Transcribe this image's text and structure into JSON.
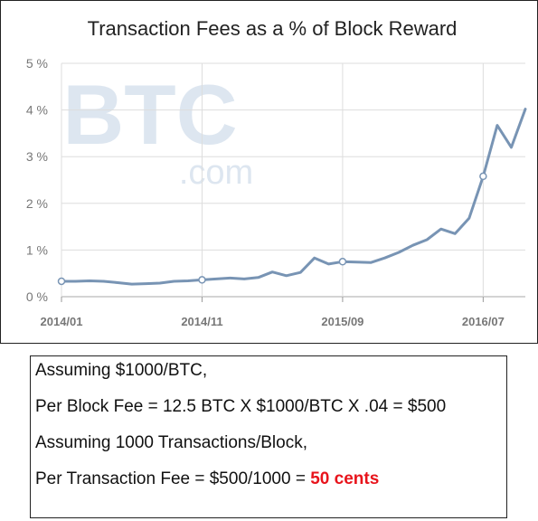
{
  "chart_data": {
    "type": "line",
    "title": "Transaction Fees as a % of Block Reward",
    "xlabel": "",
    "ylabel": "",
    "ylim": [
      0,
      5
    ],
    "yticks": [
      0,
      1,
      2,
      3,
      4,
      5
    ],
    "ytick_labels": [
      "0 %",
      "1 %",
      "2 %",
      "3 %",
      "4 %",
      "5 %"
    ],
    "xtick_labels": [
      "2014/01",
      "2014/11",
      "2015/09",
      "2016/07"
    ],
    "xtick_index": [
      0,
      10,
      20,
      30
    ],
    "grid": true,
    "x": [
      "2014/01",
      "2014/02",
      "2014/03",
      "2014/04",
      "2014/05",
      "2014/06",
      "2014/07",
      "2014/08",
      "2014/09",
      "2014/10",
      "2014/11",
      "2014/12",
      "2015/01",
      "2015/02",
      "2015/03",
      "2015/04",
      "2015/05",
      "2015/06",
      "2015/07",
      "2015/08",
      "2015/09",
      "2015/10",
      "2015/11",
      "2015/12",
      "2016/01",
      "2016/02",
      "2016/03",
      "2016/04",
      "2016/05",
      "2016/06",
      "2016/07",
      "2016/08",
      "2016/09",
      "2016/10"
    ],
    "series": [
      {
        "values": [
          0.33,
          0.33,
          0.34,
          0.33,
          0.3,
          0.27,
          0.28,
          0.29,
          0.33,
          0.34,
          0.36,
          0.38,
          0.4,
          0.38,
          0.41,
          0.53,
          0.45,
          0.52,
          0.83,
          0.7,
          0.75,
          0.74,
          0.73,
          0.83,
          0.95,
          1.1,
          1.22,
          1.45,
          1.35,
          1.68,
          2.58,
          3.67,
          3.2,
          4.02
        ],
        "color": "#7894b4"
      }
    ],
    "markers": [
      0,
      10,
      20,
      30
    ],
    "watermark": {
      "main": "BTC",
      "sub": ".com",
      "color": "#dde6f0"
    }
  },
  "note": {
    "line1": "Assuming $1000/BTC,",
    "line2": "Per Block Fee = 12.5 BTC X $1000/BTC X .04 = $500",
    "line3": "Assuming 1000 Transactions/Block,",
    "line4_prefix": "Per Transaction Fee = $500/1000 = ",
    "line4_emphasis": "50 cents",
    "emphasis_color": "#e8141c"
  }
}
